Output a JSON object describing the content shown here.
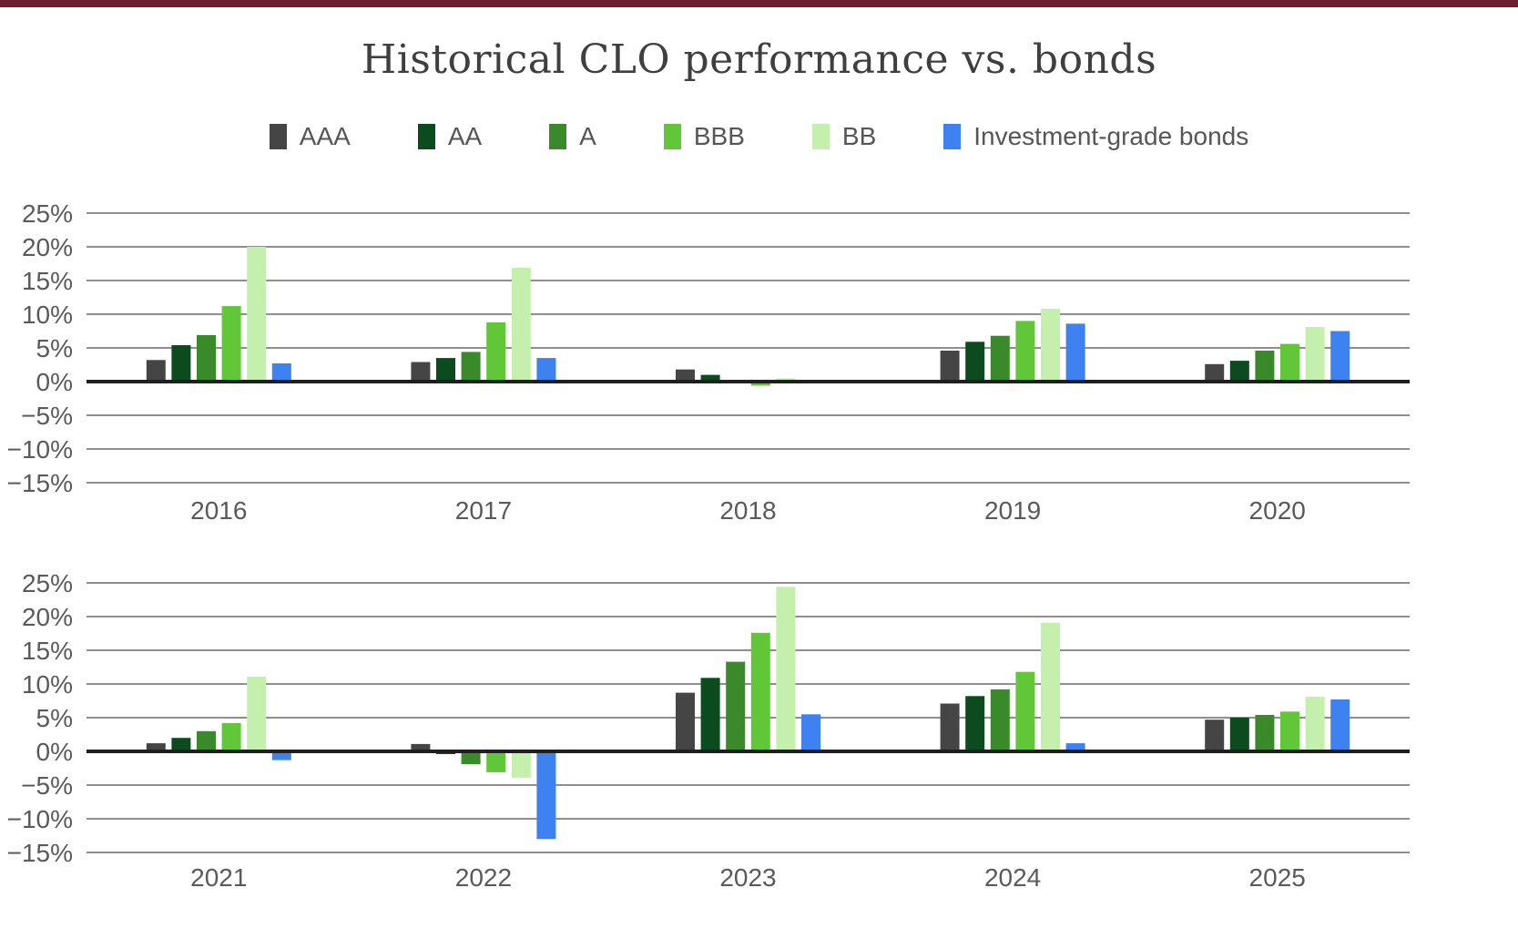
{
  "title": "Historical CLO performance vs. bonds",
  "colors": {
    "accent_bar": "#6d1f2d",
    "grid_line": "#8f8f8f",
    "zero_line": "#1f1f1f",
    "title_text": "#3f3f3f",
    "axis_text": "#5a5a5a"
  },
  "legend": {
    "position": "top",
    "labels": [
      "AAA",
      "AA",
      "A",
      "BBB",
      "BB",
      "Investment-grade bonds"
    ]
  },
  "chart_data": [
    {
      "type": "bar",
      "panel": "top",
      "title": "",
      "xlabel": "",
      "ylabel": "",
      "grid": true,
      "ylim": [
        -15,
        25
      ],
      "ytick_values": [
        25,
        20,
        15,
        10,
        5,
        0,
        -5,
        -10,
        -15
      ],
      "ytick_labels": [
        "25%",
        "20%",
        "15%",
        "10%",
        "5%",
        "0%",
        "−5%",
        "−10%",
        "−15%"
      ],
      "categories": [
        "2016",
        "2017",
        "2018",
        "2019",
        "2020"
      ],
      "series": [
        {
          "name": "AAA",
          "color": "#454545",
          "values": [
            3.2,
            2.9,
            1.8,
            4.6,
            2.6
          ]
        },
        {
          "name": "AA",
          "color": "#0c4b1e",
          "values": [
            5.4,
            3.5,
            1.0,
            5.9,
            3.1
          ]
        },
        {
          "name": "A",
          "color": "#3a8a2c",
          "values": [
            6.9,
            4.4,
            0.2,
            6.8,
            4.6
          ]
        },
        {
          "name": "BBB",
          "color": "#61c738",
          "values": [
            11.2,
            8.8,
            -0.6,
            9.0,
            5.6
          ]
        },
        {
          "name": "BB",
          "color": "#c5efad",
          "values": [
            20.0,
            16.9,
            0.5,
            10.8,
            8.1
          ]
        },
        {
          "name": "Investment-grade bonds",
          "color": "#3e82f1",
          "values": [
            2.7,
            3.5,
            0.0,
            8.6,
            7.5
          ]
        }
      ]
    },
    {
      "type": "bar",
      "panel": "bottom",
      "title": "",
      "xlabel": "",
      "ylabel": "",
      "grid": true,
      "ylim": [
        -15,
        25
      ],
      "ytick_values": [
        25,
        20,
        15,
        10,
        5,
        0,
        -5,
        -10,
        -15
      ],
      "ytick_labels": [
        "25%",
        "20%",
        "15%",
        "10%",
        "5%",
        "0%",
        "−5%",
        "−10%",
        "−15%"
      ],
      "categories": [
        "2021",
        "2022",
        "2023",
        "2024",
        "2025"
      ],
      "series": [
        {
          "name": "AAA",
          "color": "#454545",
          "values": [
            1.2,
            1.1,
            8.7,
            7.1,
            4.7
          ]
        },
        {
          "name": "AA",
          "color": "#0c4b1e",
          "values": [
            2.0,
            -0.4,
            10.9,
            8.2,
            5.0
          ]
        },
        {
          "name": "A",
          "color": "#3a8a2c",
          "values": [
            3.0,
            -1.9,
            13.3,
            9.2,
            5.4
          ]
        },
        {
          "name": "BBB",
          "color": "#61c738",
          "values": [
            4.2,
            -3.1,
            17.6,
            11.8,
            5.9
          ]
        },
        {
          "name": "BB",
          "color": "#c5efad",
          "values": [
            11.1,
            -3.9,
            24.4,
            19.1,
            8.1
          ]
        },
        {
          "name": "Investment-grade bonds",
          "color": "#3e82f1",
          "values": [
            -1.3,
            -13.0,
            5.5,
            1.2,
            7.7
          ]
        }
      ]
    }
  ]
}
